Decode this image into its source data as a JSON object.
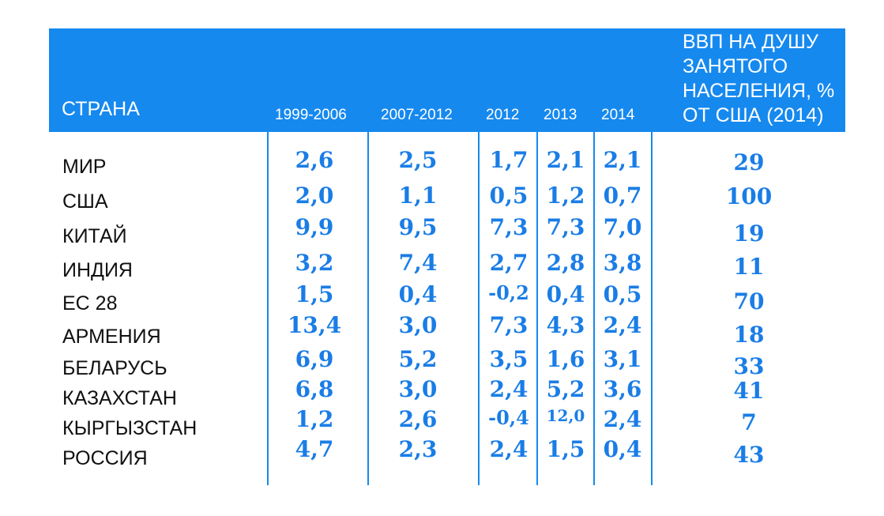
{
  "chart_data": {
    "type": "table",
    "columns": [
      "СТРАНА",
      "1999-2006",
      "2007-2012",
      "2012",
      "2013",
      "2014",
      "ВВП НА ДУШУ ЗАНЯТОГО НАСЕЛЕНИЯ, % ОТ США (2014)"
    ],
    "header": {
      "country": "СТРАНА",
      "years": [
        "1999-2006",
        "2007-2012",
        "2012",
        "2013",
        "2014"
      ],
      "gdp_lines": [
        "ВВП НА ДУШУ",
        "ЗАНЯТОГО",
        "НАСЕЛЕНИЯ, %",
        "ОТ США (2014)"
      ]
    },
    "rows": [
      {
        "country": "МИР",
        "values": [
          "2,6",
          "2,5",
          "1,7",
          "2,1",
          "2,1"
        ],
        "gdp": "29"
      },
      {
        "country": "США",
        "values": [
          "2,0",
          "1,1",
          "0,5",
          "1,2",
          "0,7"
        ],
        "gdp": "100"
      },
      {
        "country": "КИТАЙ",
        "values": [
          "9,9",
          "9,5",
          "7,3",
          "7,3",
          "7,0"
        ],
        "gdp": "19"
      },
      {
        "country": "ИНДИЯ",
        "values": [
          "3,2",
          "7,4",
          "2,7",
          "2,8",
          "3,8"
        ],
        "gdp": "11"
      },
      {
        "country": "ЕС 28",
        "values": [
          "1,5",
          "0,4",
          "-0,2",
          "0,4",
          "0,5"
        ],
        "gdp": "70"
      },
      {
        "country": "АРМЕНИЯ",
        "values": [
          "13,4",
          "3,0",
          "7,3",
          "4,3",
          "2,4"
        ],
        "gdp": "18"
      },
      {
        "country": "БЕЛАРУСЬ",
        "values": [
          "6,9",
          "5,2",
          "3,5",
          "1,6",
          "3,1"
        ],
        "gdp": "33"
      },
      {
        "country": "КАЗАХСТАН",
        "values": [
          "6,8",
          "3,0",
          "2,4",
          "5,2",
          "3,6"
        ],
        "gdp": "41"
      },
      {
        "country": "КЫРГЫЗСТАН",
        "values": [
          "1,2",
          "2,6",
          "-0,4",
          "12,0",
          "2,4"
        ],
        "gdp": "7"
      },
      {
        "country": "РОССИЯ",
        "values": [
          "4,7",
          "2,3",
          "2,4",
          "1,5",
          "0,4"
        ],
        "gdp": "43"
      }
    ]
  },
  "colors": {
    "header_bg": "#1689ef",
    "header_text": "#ffffff",
    "value_text": "#1a7de6",
    "country_text": "#111111",
    "divider": "#1689ef"
  }
}
